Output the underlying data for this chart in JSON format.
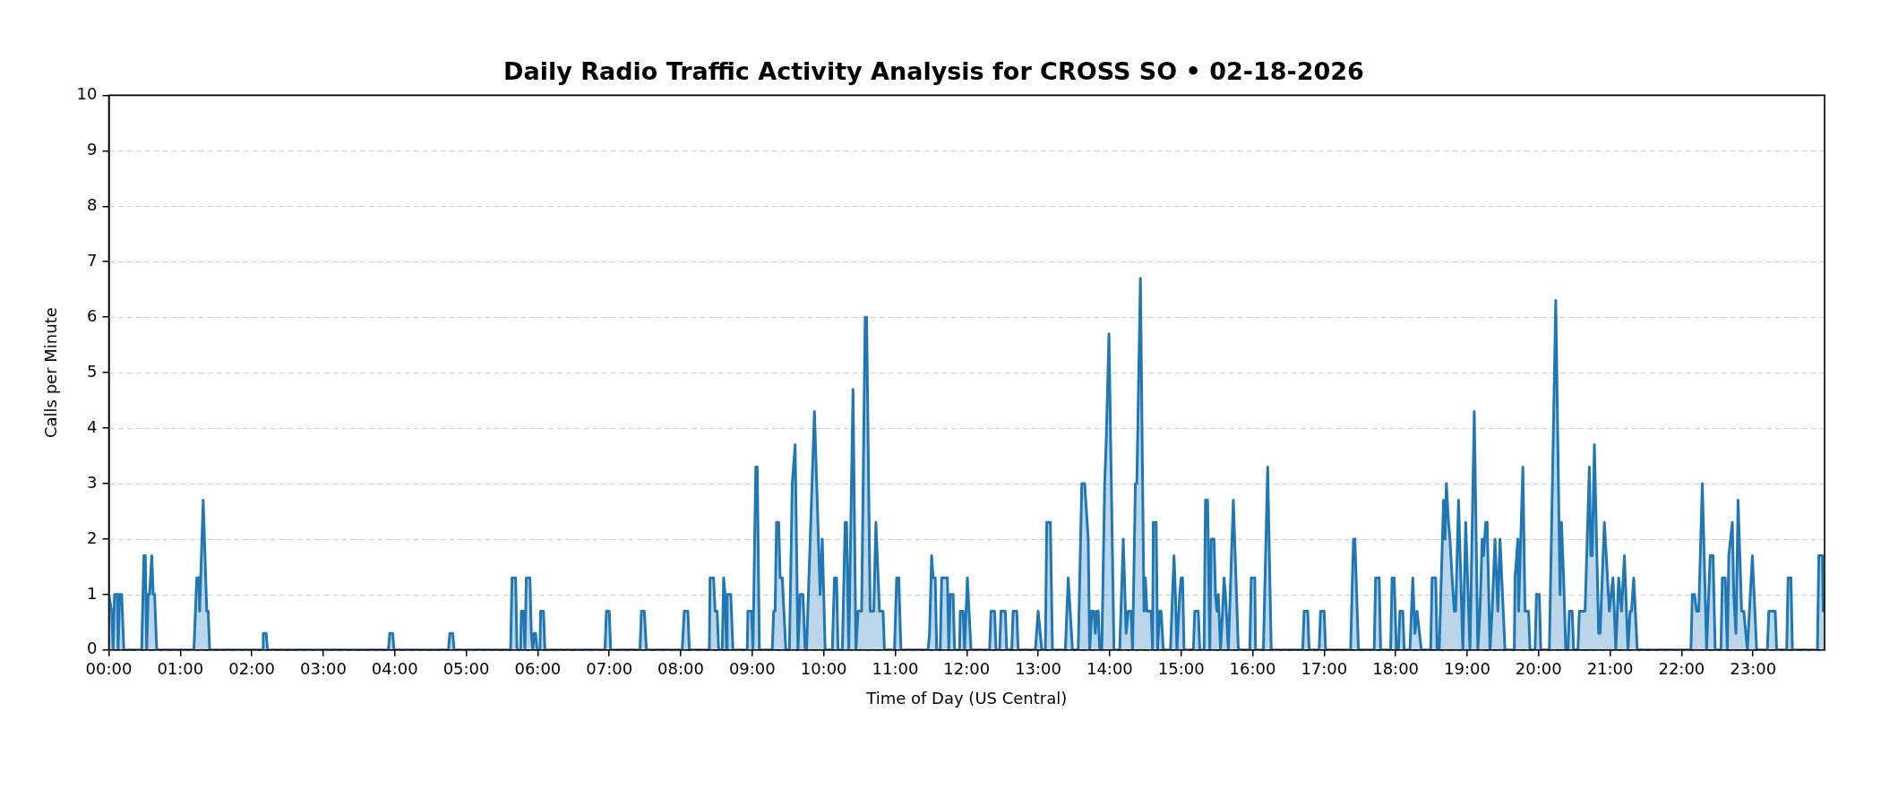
{
  "chart_data": {
    "type": "area",
    "title": "Daily Radio Traffic Activity Analysis for CROSS SO • 02-18-2026",
    "xlabel": "Time of Day (US Central)",
    "ylabel": "Calls per Minute",
    "color": "#1f77b4",
    "x": [
      0,
      0.04,
      0.06,
      0.08,
      0.12,
      0.13,
      0.15,
      0.18,
      0.21,
      0.46,
      0.49,
      0.51,
      0.53,
      0.55,
      0.57,
      0.6,
      0.62,
      0.64,
      0.67,
      1.19,
      1.23,
      1.26,
      1.27,
      1.32,
      1.37,
      1.39,
      1.41,
      2.15,
      2.16,
      2.2,
      2.22,
      3.91,
      3.93,
      3.97,
      3.99,
      4.75,
      4.77,
      4.81,
      4.83,
      5.62,
      5.64,
      5.69,
      5.71,
      5.76,
      5.77,
      5.8,
      5.82,
      5.84,
      5.89,
      5.91,
      5.93,
      5.95,
      5.97,
      5.99,
      6.03,
      6.04,
      6.08,
      6.1,
      6.94,
      6.96,
      7,
      7.02,
      7.43,
      7.45,
      7.49,
      7.52,
      8.02,
      8.05,
      8.1,
      8.12,
      8.4,
      8.41,
      8.46,
      8.48,
      8.51,
      8.53,
      8.58,
      8.6,
      8.62,
      8.64,
      8.65,
      8.7,
      8.73,
      8.93,
      8.94,
      8.99,
      9.01,
      9.05,
      9.07,
      9.1,
      9.28,
      9.3,
      9.32,
      9.34,
      9.37,
      9.39,
      9.42,
      9.47,
      9.52,
      9.56,
      9.6,
      9.64,
      9.67,
      9.71,
      9.74,
      9.76,
      9.87,
      9.95,
      9.98,
      10.02,
      10.12,
      10.15,
      10.18,
      10.2,
      10.26,
      10.3,
      10.32,
      10.35,
      10.41,
      10.45,
      10.48,
      10.53,
      10.58,
      10.6,
      10.65,
      10.7,
      10.73,
      10.78,
      10.83,
      10.85,
      10.99,
      11.02,
      11.05,
      11.08,
      11.46,
      11.48,
      11.51,
      11.53,
      11.56,
      11.58,
      11.63,
      11.65,
      11.73,
      11.75,
      11.77,
      11.81,
      11.83,
      11.9,
      11.91,
      11.95,
      11.97,
      12.01,
      12.06,
      12.32,
      12.34,
      12.39,
      12.41,
      12.46,
      12.48,
      12.54,
      12.56,
      12.63,
      12.65,
      12.7,
      12.72,
      12.96,
      13,
      13.05,
      13.1,
      13.12,
      13.17,
      13.2,
      13.38,
      13.42,
      13.48,
      13.56,
      13.61,
      13.65,
      13.7,
      13.72,
      13.75,
      13.78,
      13.8,
      13.82,
      13.84,
      13.86,
      13.89,
      13.93,
      13.95,
      13.99,
      14.06,
      14.14,
      14.19,
      14.23,
      14.26,
      14.3,
      14.32,
      14.36,
      14.38,
      14.43,
      14.48,
      14.5,
      14.52,
      14.58,
      14.6,
      14.61,
      14.65,
      14.67,
      14.7,
      14.72,
      14.75,
      14.85,
      14.87,
      14.9,
      14.92,
      14.94,
      14.98,
      15,
      15.02,
      15.04,
      15.17,
      15.19,
      15.24,
      15.26,
      15.32,
      15.34,
      15.37,
      15.4,
      15.42,
      15.46,
      15.48,
      15.5,
      15.52,
      15.55,
      15.58,
      15.6,
      15.62,
      15.66,
      15.73,
      15.8,
      15.96,
      15.98,
      16.03,
      16.04,
      16.15,
      16.21,
      16.26,
      16.7,
      16.72,
      16.77,
      16.79,
      16.93,
      16.95,
      17,
      17.02,
      17.37,
      17.41,
      17.43,
      17.48,
      17.7,
      17.72,
      17.77,
      17.79,
      17.93,
      17.95,
      17.98,
      18.01,
      18.04,
      18.06,
      18.1,
      18.12,
      18.2,
      18.24,
      18.27,
      18.3,
      18.31,
      18.36,
      18.49,
      18.51,
      18.56,
      18.58,
      18.61,
      18.67,
      18.69,
      18.71,
      18.74,
      18.76,
      18.79,
      18.82,
      18.84,
      18.88,
      18.94,
      18.98,
      19.04,
      19.1,
      19.15,
      19.18,
      19.21,
      19.23,
      19.26,
      19.28,
      19.32,
      19.35,
      19.39,
      19.43,
      19.46,
      19.53,
      19.66,
      19.67,
      19.71,
      19.72,
      19.78,
      19.81,
      19.86,
      19.88,
      19.95,
      19.97,
      20.01,
      20.03,
      20.15,
      20.24,
      20.3,
      20.32,
      20.35,
      20.38,
      20.41,
      20.43,
      20.47,
      20.49,
      20.55,
      20.57,
      20.65,
      20.71,
      20.73,
      20.75,
      20.78,
      20.84,
      20.86,
      20.92,
      20.99,
      21.04,
      21.08,
      21.12,
      21.16,
      21.2,
      21.25,
      21.28,
      21.3,
      21.33,
      21.38,
      22.13,
      22.15,
      22.18,
      22.21,
      22.24,
      22.29,
      22.35,
      22.4,
      22.44,
      22.47,
      22.55,
      22.57,
      22.61,
      22.64,
      22.66,
      22.71,
      22.73,
      22.76,
      22.79,
      22.84,
      22.87,
      22.92,
      22.99,
      23.05,
      23.2,
      23.22,
      23.31,
      23.33,
      23.47,
      23.49,
      23.53,
      23.55,
      23.9,
      23.92,
      23.97,
      23.98,
      24
    ],
    "values": [
      1,
      0.7,
      0,
      1,
      1,
      0,
      1,
      1,
      0,
      0,
      1.7,
      1.7,
      0,
      1,
      1,
      1.7,
      1,
      1,
      0,
      0,
      1.3,
      1.3,
      0.7,
      2.7,
      0.7,
      0.7,
      0,
      0,
      0.3,
      0.3,
      0,
      0,
      0.3,
      0.3,
      0,
      0,
      0.3,
      0.3,
      0,
      0,
      1.3,
      1.3,
      0,
      0,
      0.7,
      0.7,
      0,
      1.3,
      1.3,
      0.3,
      0,
      0.3,
      0.3,
      0,
      0,
      0.7,
      0.7,
      0,
      0,
      0.7,
      0.7,
      0,
      0,
      0.7,
      0.7,
      0,
      0,
      0.7,
      0.7,
      0,
      0,
      1.3,
      1.3,
      0.7,
      0.7,
      0,
      0,
      1.3,
      1,
      0,
      1,
      1,
      0,
      0,
      0.7,
      0.7,
      0,
      3.3,
      3.3,
      0,
      0,
      0.7,
      0.7,
      2.3,
      2.3,
      1.3,
      1.3,
      0,
      0,
      3,
      3.7,
      0,
      1,
      1,
      0,
      0,
      4.3,
      1,
      2,
      0,
      0,
      1.3,
      1.3,
      0,
      0,
      2.3,
      2.3,
      0,
      4.7,
      0,
      0.7,
      0.7,
      6,
      6,
      0.7,
      0.7,
      2.3,
      0.7,
      0.7,
      0,
      0,
      1.3,
      1.3,
      0,
      0,
      0.3,
      1.7,
      1.3,
      1.3,
      0,
      0,
      1.3,
      1.3,
      0,
      1,
      1,
      0,
      0,
      0.7,
      0.7,
      0,
      1.3,
      0,
      0,
      0.7,
      0.7,
      0,
      0,
      0.7,
      0.7,
      0,
      0,
      0.7,
      0.7,
      0,
      0,
      0.7,
      0,
      0,
      2.3,
      2.3,
      0,
      0,
      1.3,
      0,
      0,
      3,
      3,
      2,
      0,
      0.7,
      0.7,
      0.3,
      0.7,
      0.7,
      0,
      0,
      3,
      3.7,
      5.7,
      0,
      0,
      2,
      0.3,
      0.7,
      0.7,
      0,
      3,
      3,
      6.7,
      0.7,
      1.3,
      0.7,
      0.7,
      0,
      2.3,
      2.3,
      0,
      0.7,
      0.7,
      0,
      0,
      0.7,
      1.7,
      1,
      0,
      1,
      1.3,
      1.3,
      0,
      0,
      0.7,
      0.7,
      0,
      0,
      2.7,
      2.7,
      0,
      2,
      2,
      1,
      0.7,
      1,
      0,
      0.7,
      1.3,
      1,
      0,
      2.7,
      0,
      0,
      1.3,
      1.3,
      0,
      0,
      3.3,
      0,
      0,
      0.7,
      0.7,
      0,
      0,
      0.7,
      0.7,
      0,
      0,
      2,
      2,
      0,
      0,
      1.3,
      1.3,
      0,
      0,
      1.3,
      1.3,
      0,
      0,
      0.7,
      0.7,
      0,
      0,
      1.3,
      0.3,
      0.7,
      0.7,
      0,
      0,
      1.3,
      1.3,
      0,
      0,
      2.7,
      2,
      3,
      2.3,
      2,
      1.3,
      0.7,
      0.7,
      2.7,
      0,
      2.3,
      0,
      4.3,
      0,
      0.7,
      2,
      1.7,
      2.3,
      2.3,
      0,
      0.7,
      2,
      0.7,
      2,
      0,
      0,
      1.3,
      2,
      0.7,
      3.3,
      0.7,
      0.7,
      0,
      0,
      1,
      1,
      0,
      0,
      6.3,
      1,
      2.3,
      1.3,
      0,
      0,
      0.7,
      0.7,
      0,
      0,
      0.7,
      0.7,
      3.3,
      1.7,
      1.7,
      3.7,
      0.3,
      0.3,
      2.3,
      0.7,
      1.3,
      0,
      1.3,
      0.7,
      1.7,
      0,
      0.7,
      0.7,
      1.3,
      0,
      0,
      1,
      1,
      0.7,
      0.7,
      3,
      0,
      1.7,
      1.7,
      0,
      0,
      1.3,
      1.3,
      0,
      1.7,
      2.3,
      1,
      0.3,
      2.7,
      0.7,
      0.7,
      0,
      1.7,
      0,
      0,
      0.7,
      0.7,
      0,
      0,
      1.3,
      1.3,
      0,
      0,
      1.7,
      1.7,
      0.7,
      1
    ],
    "xlim": [
      0,
      24
    ],
    "xticks": [
      {
        "value": 0,
        "label": "00:00"
      },
      {
        "value": 1,
        "label": "01:00"
      },
      {
        "value": 2,
        "label": "02:00"
      },
      {
        "value": 3,
        "label": "03:00"
      },
      {
        "value": 4,
        "label": "04:00"
      },
      {
        "value": 5,
        "label": "05:00"
      },
      {
        "value": 6,
        "label": "06:00"
      },
      {
        "value": 7,
        "label": "07:00"
      },
      {
        "value": 8,
        "label": "08:00"
      },
      {
        "value": 9,
        "label": "09:00"
      },
      {
        "value": 10,
        "label": "10:00"
      },
      {
        "value": 11,
        "label": "11:00"
      },
      {
        "value": 12,
        "label": "12:00"
      },
      {
        "value": 13,
        "label": "13:00"
      },
      {
        "value": 14,
        "label": "14:00"
      },
      {
        "value": 15,
        "label": "15:00"
      },
      {
        "value": 16,
        "label": "16:00"
      },
      {
        "value": 17,
        "label": "17:00"
      },
      {
        "value": 18,
        "label": "18:00"
      },
      {
        "value": 19,
        "label": "19:00"
      },
      {
        "value": 20,
        "label": "20:00"
      },
      {
        "value": 21,
        "label": "21:00"
      },
      {
        "value": 22,
        "label": "22:00"
      },
      {
        "value": 23,
        "label": "23:00"
      }
    ],
    "ylim": [
      0,
      10
    ],
    "yticks": [
      0,
      1,
      2,
      3,
      4,
      5,
      6,
      7,
      8,
      9,
      10
    ],
    "grid": "y",
    "marker": "none",
    "line_style": "solid"
  }
}
